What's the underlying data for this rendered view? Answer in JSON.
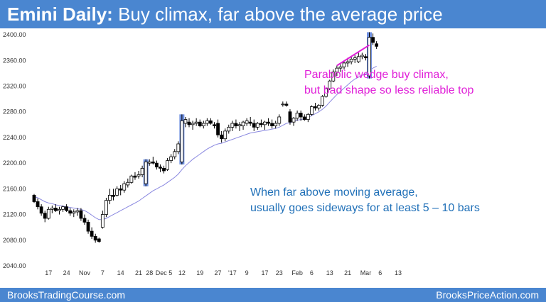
{
  "header": {
    "title_bold": "Emini Daily:",
    "title_rest": "Buy climax, far above the average price"
  },
  "footer": {
    "left": "BrooksTradingCourse.com",
    "right": "BrooksPriceAction.com"
  },
  "chart_data": {
    "type": "candlestick",
    "title": "",
    "xlabel": "",
    "ylabel": "",
    "ylim": [
      2040,
      2410
    ],
    "y_ticks": [
      "2400.00",
      "2360.00",
      "2320.00",
      "2280.00",
      "2240.00",
      "2200.00",
      "2160.00",
      "2120.00",
      "2080.00",
      "2040.00"
    ],
    "y_tick_values": [
      2400,
      2360,
      2320,
      2280,
      2240,
      2200,
      2160,
      2120,
      2080,
      2040
    ],
    "x_ticks": [
      {
        "label": "17",
        "bar": 4
      },
      {
        "label": "24",
        "bar": 9
      },
      {
        "label": "Nov",
        "bar": 14
      },
      {
        "label": "7",
        "bar": 19
      },
      {
        "label": "14",
        "bar": 24
      },
      {
        "label": "21",
        "bar": 29
      },
      {
        "label": "28",
        "bar": 32
      },
      {
        "label": "Dec 5",
        "bar": 36
      },
      {
        "label": "12",
        "bar": 41
      },
      {
        "label": "19",
        "bar": 46
      },
      {
        "label": "27",
        "bar": 51
      },
      {
        "label": "'17",
        "bar": 55
      },
      {
        "label": "9",
        "bar": 59
      },
      {
        "label": "17",
        "bar": 64
      },
      {
        "label": "23",
        "bar": 68
      },
      {
        "label": "Feb",
        "bar": 73
      },
      {
        "label": "6",
        "bar": 77
      },
      {
        "label": "13",
        "bar": 82
      },
      {
        "label": "21",
        "bar": 87
      },
      {
        "label": "Mar",
        "bar": 92
      },
      {
        "label": "6",
        "bar": 96
      },
      {
        "label": "13",
        "bar": 101
      }
    ],
    "candles": [
      [
        2150,
        2152,
        2138,
        2140
      ],
      [
        2140,
        2145,
        2128,
        2132
      ],
      [
        2132,
        2136,
        2118,
        2122
      ],
      [
        2122,
        2126,
        2108,
        2114
      ],
      [
        2114,
        2132,
        2112,
        2128
      ],
      [
        2128,
        2134,
        2122,
        2130
      ],
      [
        2130,
        2136,
        2124,
        2126
      ],
      [
        2126,
        2132,
        2120,
        2128
      ],
      [
        2128,
        2134,
        2124,
        2132
      ],
      [
        2132,
        2136,
        2124,
        2126
      ],
      [
        2126,
        2130,
        2118,
        2122
      ],
      [
        2122,
        2128,
        2116,
        2124
      ],
      [
        2124,
        2130,
        2118,
        2126
      ],
      [
        2126,
        2130,
        2110,
        2114
      ],
      [
        2114,
        2120,
        2104,
        2108
      ],
      [
        2108,
        2112,
        2090,
        2094
      ],
      [
        2094,
        2100,
        2082,
        2086
      ],
      [
        2086,
        2090,
        2076,
        2080
      ],
      [
        2082,
        2084,
        2076,
        2078
      ],
      [
        2100,
        2126,
        2098,
        2120
      ],
      [
        2120,
        2146,
        2116,
        2142
      ],
      [
        2142,
        2160,
        2136,
        2150
      ],
      [
        2150,
        2160,
        2142,
        2148
      ],
      [
        2150,
        2164,
        2148,
        2160
      ],
      [
        2160,
        2166,
        2150,
        2158
      ],
      [
        2158,
        2172,
        2154,
        2168
      ],
      [
        2166,
        2176,
        2162,
        2170
      ],
      [
        2170,
        2182,
        2168,
        2180
      ],
      [
        2180,
        2186,
        2174,
        2178
      ],
      [
        2180,
        2188,
        2176,
        2182
      ],
      [
        2182,
        2196,
        2178,
        2192
      ],
      [
        2168,
        2206,
        2164,
        2202
      ],
      [
        2200,
        2206,
        2196,
        2202
      ],
      [
        2202,
        2210,
        2198,
        2200
      ],
      [
        2200,
        2204,
        2190,
        2194
      ],
      [
        2194,
        2198,
        2186,
        2192
      ],
      [
        2192,
        2196,
        2184,
        2188
      ],
      [
        2190,
        2208,
        2188,
        2204
      ],
      [
        2204,
        2214,
        2200,
        2210
      ],
      [
        2210,
        2222,
        2206,
        2218
      ],
      [
        2218,
        2234,
        2214,
        2230
      ],
      [
        2202,
        2276,
        2198,
        2266
      ],
      [
        2262,
        2272,
        2256,
        2268
      ],
      [
        2264,
        2270,
        2256,
        2260
      ],
      [
        2260,
        2266,
        2252,
        2262
      ],
      [
        2262,
        2270,
        2258,
        2264
      ],
      [
        2264,
        2268,
        2256,
        2258
      ],
      [
        2258,
        2266,
        2254,
        2262
      ],
      [
        2262,
        2270,
        2258,
        2266
      ],
      [
        2266,
        2270,
        2260,
        2262
      ],
      [
        2260,
        2264,
        2254,
        2258
      ],
      [
        2262,
        2268,
        2240,
        2244
      ],
      [
        2244,
        2250,
        2232,
        2238
      ],
      [
        2238,
        2254,
        2234,
        2250
      ],
      [
        2250,
        2260,
        2246,
        2256
      ],
      [
        2256,
        2266,
        2250,
        2262
      ],
      [
        2262,
        2268,
        2254,
        2258
      ],
      [
        2258,
        2264,
        2250,
        2260
      ],
      [
        2258,
        2266,
        2252,
        2264
      ],
      [
        2262,
        2270,
        2258,
        2266
      ],
      [
        2264,
        2272,
        2258,
        2262
      ],
      [
        2262,
        2268,
        2250,
        2256
      ],
      [
        2256,
        2264,
        2252,
        2262
      ],
      [
        2262,
        2268,
        2256,
        2260
      ],
      [
        2260,
        2266,
        2252,
        2264
      ],
      [
        2264,
        2270,
        2258,
        2262
      ],
      [
        2262,
        2268,
        2254,
        2258
      ],
      [
        2258,
        2266,
        2254,
        2262
      ],
      [
        2262,
        2276,
        2258,
        2272
      ],
      [
        2292,
        2296,
        2288,
        2292
      ],
      [
        2292,
        2296,
        2288,
        2290
      ],
      [
        2280,
        2284,
        2260,
        2264
      ],
      [
        2264,
        2272,
        2258,
        2270
      ],
      [
        2270,
        2282,
        2266,
        2278
      ],
      [
        2278,
        2282,
        2266,
        2272
      ],
      [
        2272,
        2276,
        2266,
        2268
      ],
      [
        2268,
        2278,
        2264,
        2276
      ],
      [
        2276,
        2290,
        2274,
        2288
      ],
      [
        2288,
        2294,
        2282,
        2286
      ],
      [
        2286,
        2292,
        2282,
        2290
      ],
      [
        2290,
        2306,
        2288,
        2304
      ],
      [
        2304,
        2318,
        2302,
        2316
      ],
      [
        2316,
        2330,
        2314,
        2328
      ],
      [
        2328,
        2346,
        2326,
        2342
      ],
      [
        2342,
        2352,
        2336,
        2348
      ],
      [
        2348,
        2354,
        2342,
        2350
      ],
      [
        2350,
        2360,
        2346,
        2356
      ],
      [
        2356,
        2364,
        2350,
        2358
      ],
      [
        2358,
        2366,
        2354,
        2362
      ],
      [
        2362,
        2368,
        2356,
        2364
      ],
      [
        2358,
        2372,
        2356,
        2366
      ],
      [
        2366,
        2372,
        2362,
        2368
      ],
      [
        2366,
        2370,
        2360,
        2364
      ],
      [
        2336,
        2404,
        2332,
        2396
      ],
      [
        2396,
        2402,
        2384,
        2388
      ],
      [
        2386,
        2390,
        2378,
        2382
      ]
    ],
    "moving_average": [
      2148,
      2146,
      2143,
      2140,
      2138,
      2137,
      2135,
      2134,
      2133,
      2132,
      2131,
      2130,
      2129,
      2128,
      2126,
      2123,
      2119,
      2115,
      2112,
      2112,
      2114,
      2117,
      2120,
      2123,
      2126,
      2129,
      2132,
      2135,
      2138,
      2141,
      2145,
      2149,
      2153,
      2157,
      2160,
      2163,
      2166,
      2170,
      2174,
      2178,
      2183,
      2190,
      2196,
      2201,
      2206,
      2210,
      2214,
      2218,
      2222,
      2225,
      2228,
      2230,
      2231,
      2233,
      2235,
      2237,
      2239,
      2241,
      2243,
      2245,
      2247,
      2248,
      2249,
      2250,
      2251,
      2252,
      2253,
      2254,
      2256,
      2259,
      2262,
      2263,
      2265,
      2267,
      2268,
      2269,
      2271,
      2274,
      2277,
      2280,
      2284,
      2289,
      2295,
      2301,
      2307,
      2312,
      2317,
      2322,
      2327,
      2331,
      2334,
      2337,
      2339,
      2344,
      2348,
      2351
    ],
    "highlighted_bars": [
      31,
      41,
      93
    ],
    "wedge_line": {
      "from": [
        84,
        2352
      ],
      "to": [
        93,
        2384
      ]
    },
    "colors": {
      "bull_body": "#ffffff",
      "bear_body": "#000000",
      "candle_outline": "#000000",
      "moving_average": "#8a88e0",
      "highlight": "#6f90e0",
      "wedge_line": "#e020d8",
      "annotation_top": "#e020d8",
      "annotation_mid": "#2070b8"
    },
    "annotations": [
      {
        "id": "top",
        "lines": [
          "Parabolic wedge buy climax,",
          "but bad shape so less reliable top"
        ]
      },
      {
        "id": "mid",
        "lines": [
          "When far above moving average,",
          "usually goes sideways for at least 5 – 10 bars"
        ]
      }
    ]
  }
}
